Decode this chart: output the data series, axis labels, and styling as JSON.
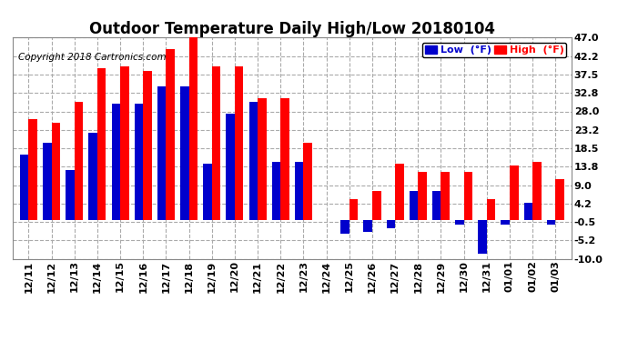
{
  "title": "Outdoor Temperature Daily High/Low 20180104",
  "copyright": "Copyright 2018 Cartronics.com",
  "legend_low_label": "Low  (°F)",
  "legend_high_label": "High  (°F)",
  "categories": [
    "12/11",
    "12/12",
    "12/13",
    "12/14",
    "12/15",
    "12/16",
    "12/17",
    "12/18",
    "12/19",
    "12/20",
    "12/21",
    "12/22",
    "12/23",
    "12/24",
    "12/25",
    "12/26",
    "12/27",
    "12/28",
    "12/29",
    "12/30",
    "12/31",
    "01/01",
    "01/02",
    "01/03"
  ],
  "high_values": [
    26.0,
    25.0,
    30.5,
    39.0,
    39.5,
    38.5,
    44.0,
    47.5,
    39.5,
    39.5,
    31.5,
    31.5,
    20.0,
    null,
    5.5,
    7.5,
    14.5,
    12.5,
    12.5,
    12.5,
    5.5,
    14.0,
    15.0,
    10.5
  ],
  "low_values": [
    17.0,
    20.0,
    13.0,
    22.5,
    30.0,
    30.0,
    34.5,
    34.5,
    14.5,
    27.5,
    30.5,
    15.0,
    15.0,
    null,
    -3.5,
    -3.0,
    -2.0,
    7.5,
    7.5,
    -1.0,
    -8.5,
    -1.0,
    4.5,
    -1.0
  ],
  "ylim": [
    -10.0,
    47.0
  ],
  "yticks": [
    -10.0,
    -5.2,
    -0.5,
    4.2,
    9.0,
    13.8,
    18.5,
    23.2,
    28.0,
    32.8,
    37.5,
    42.2,
    47.0
  ],
  "bar_width": 0.38,
  "high_color": "#FF0000",
  "low_color": "#0000CC",
  "background_color": "#FFFFFF",
  "grid_color": "#AAAAAA",
  "title_fontsize": 12,
  "tick_fontsize": 8,
  "copyright_fontsize": 7.5
}
